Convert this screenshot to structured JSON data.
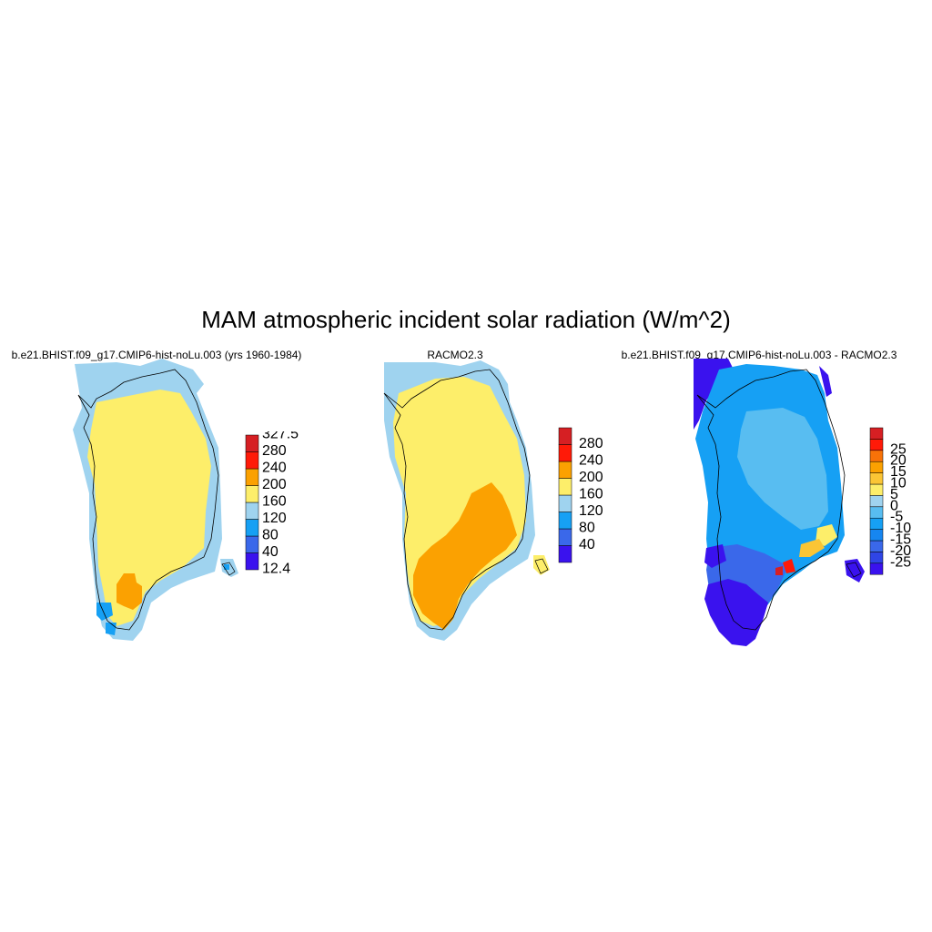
{
  "title": "MAM atmospheric incident solar radiation (W/m^2)",
  "colors": {
    "c_purple": "#3a12ee",
    "c_blue": "#3a68ea",
    "c_mid_blue": "#16a0f4",
    "c_light_blue": "#9fd3ef",
    "c_yellow": "#fdee6a",
    "c_orange": "#fba101",
    "c_red": "#ff1a08",
    "c_dark_red": "#d61f23",
    "coast": "#000000"
  },
  "panels": [
    {
      "id": "model",
      "title": "b.e21.BHIST.f09_g17.CMIP6-hist-noLu.003 (yrs 1960-1984)",
      "colorbar": {
        "colors": [
          "#3a12ee",
          "#3a68ea",
          "#16a0f4",
          "#9fd3ef",
          "#fdee6a",
          "#fba101",
          "#ff1a08",
          "#d61f23"
        ],
        "tick_labels": [
          "12.4",
          "40",
          "80",
          "120",
          "160",
          "200",
          "240",
          "280",
          "327.5"
        ],
        "ticks_at_edges": true
      }
    },
    {
      "id": "obs",
      "title": "RACMO2.3",
      "colorbar": {
        "colors": [
          "#3a12ee",
          "#3a68ea",
          "#16a0f4",
          "#9fd3ef",
          "#fdee6a",
          "#fba101",
          "#ff1a08",
          "#d61f23"
        ],
        "tick_labels": [
          "40",
          "80",
          "120",
          "160",
          "200",
          "240",
          "280"
        ],
        "ticks_at_edges": false
      }
    },
    {
      "id": "diff",
      "title": "b.e21.BHIST.f09_g17.CMIP6-hist-noLu.003 - RACMO2.3",
      "colorbar": {
        "colors": [
          "#3a12ee",
          "#2f45e6",
          "#3a68ea",
          "#1686f0",
          "#16a0f4",
          "#58bdf1",
          "#9fd3ef",
          "#fdee6a",
          "#fbc535",
          "#fba101",
          "#f87208",
          "#ff1a08",
          "#d61f23"
        ],
        "tick_labels": [
          "-25",
          "-20",
          "-15",
          "-10",
          "-5",
          "0",
          "5",
          "10",
          "15",
          "20",
          "25"
        ],
        "ticks_at_edges": false
      }
    }
  ]
}
